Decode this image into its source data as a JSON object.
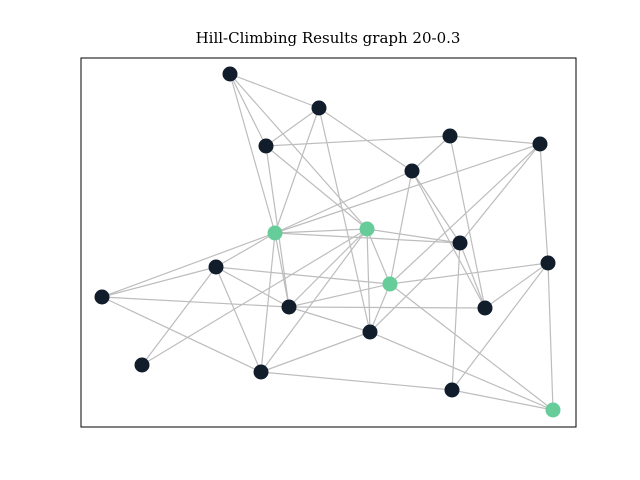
{
  "header": {
    "title": "Hill-Climbing Results graph 20-0.3"
  }
}
